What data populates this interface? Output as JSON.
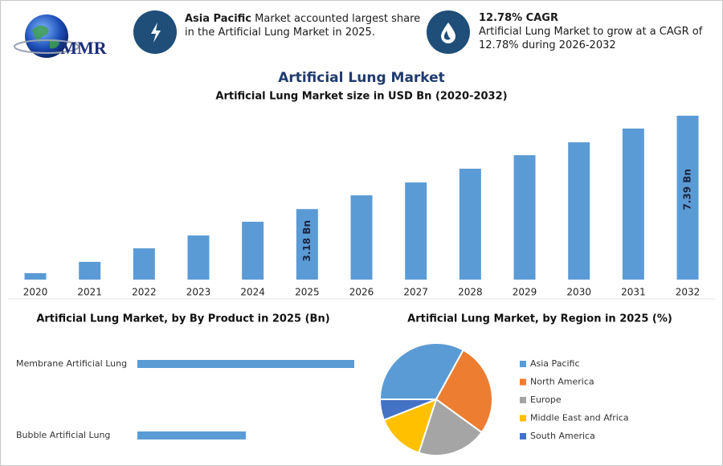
{
  "header": {
    "logo": "MMR",
    "info": [
      {
        "bold": "Asia Pacific",
        "text": "Market accounted largest share in the Artificial Lung Market in 2025."
      },
      {
        "bold": "12.78% CAGR",
        "text": "Artificial Lung Market to grow at a CAGR of 12.78% during 2026-2032"
      }
    ]
  },
  "chart_data": [
    {
      "type": "bar",
      "title": "Artificial Lung Market",
      "subtitle": "Artificial Lung Market size in USD Bn (2020-2032)",
      "categories": [
        "2020",
        "2021",
        "2022",
        "2023",
        "2024",
        "2025",
        "2026",
        "2027",
        "2028",
        "2029",
        "2030",
        "2031",
        "2032"
      ],
      "values": [
        0.29,
        0.8,
        1.41,
        1.99,
        2.61,
        3.18,
        3.8,
        4.38,
        5.0,
        5.61,
        6.19,
        6.81,
        7.39
      ],
      "value_labels": [
        null,
        null,
        null,
        null,
        null,
        "3.18 Bn",
        null,
        null,
        null,
        null,
        null,
        null,
        "7.39 Bn"
      ],
      "color": "#5b9bd5"
    },
    {
      "type": "hbar",
      "title": "Artificial Lung Market, by By Product in 2025 (Bn)",
      "categories": [
        "Membrane Artificial Lung",
        "Bubble Artificial Lung"
      ],
      "values": [
        2.12,
        1.06
      ],
      "color": "#5b9bd5"
    },
    {
      "type": "pie",
      "title": "Artificial Lung Market, by Region in 2025 (%)",
      "categories": [
        "Asia Pacific",
        "North America",
        "Europe",
        "Middle East and Africa",
        "South America"
      ],
      "values": [
        33,
        27,
        20,
        14,
        6
      ],
      "colors": [
        "#5b9bd5",
        "#ed7d31",
        "#a5a5a5",
        "#ffc000",
        "#4472c4"
      ]
    }
  ]
}
